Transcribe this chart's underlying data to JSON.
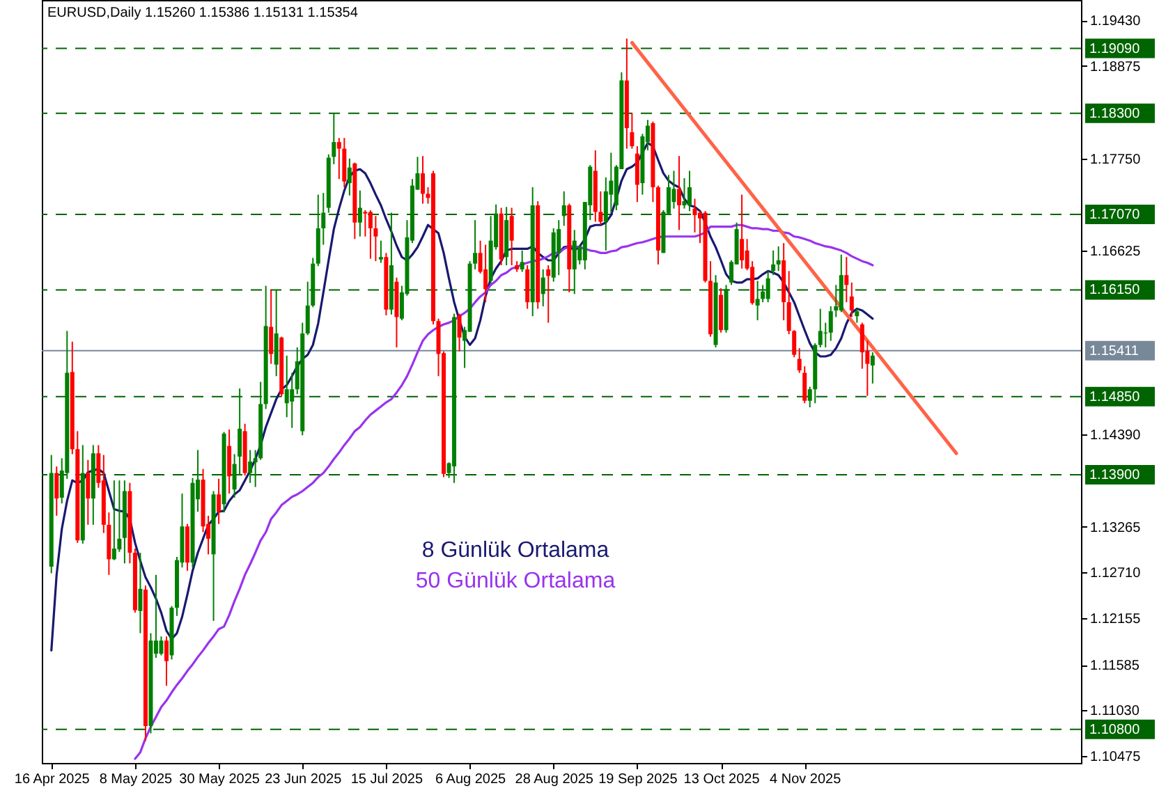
{
  "chart_data": {
    "type": "candlestick",
    "title": "EURUSD,Daily  1.15260 1.15386 1.15131 1.15354",
    "categories": [
      "16 Apr 2025",
      null,
      null,
      null,
      null,
      null,
      null,
      null,
      null,
      null,
      null,
      null,
      null,
      null,
      null,
      null,
      "8 May 2025",
      null,
      null,
      null,
      null,
      null,
      null,
      null,
      null,
      null,
      null,
      null,
      null,
      null,
      null,
      null,
      "30 May 2025",
      null,
      null,
      null,
      null,
      null,
      null,
      null,
      null,
      null,
      null,
      null,
      null,
      null,
      null,
      null,
      "23 Jun 2025",
      null,
      null,
      null,
      null,
      null,
      null,
      null,
      null,
      null,
      null,
      null,
      null,
      null,
      null,
      null,
      "15 Jul 2025",
      null,
      null,
      null,
      null,
      null,
      null,
      null,
      null,
      null,
      null,
      null,
      null,
      null,
      null,
      null,
      "6 Aug 2025",
      null,
      null,
      null,
      null,
      null,
      null,
      null,
      null,
      null,
      null,
      null,
      null,
      null,
      null,
      null,
      "28 Aug 2025",
      null,
      null,
      null,
      null,
      null,
      null,
      null,
      null,
      null,
      null,
      null,
      null,
      null,
      null,
      null,
      "19 Sep 2025",
      null,
      null,
      null,
      null,
      null,
      null,
      null,
      null,
      null,
      null,
      null,
      null,
      null,
      null,
      null,
      "13 Oct 2025",
      null,
      null,
      null,
      null,
      null,
      null,
      null,
      null,
      null,
      null,
      null,
      null,
      null,
      null,
      null,
      "4 Nov 2025",
      null,
      null,
      null,
      null,
      null,
      null,
      null,
      null,
      null,
      null,
      null,
      null,
      null,
      null,
      null,
      null,
      null,
      null,
      null,
      null,
      null,
      null,
      null,
      null,
      null,
      null,
      null,
      null,
      null,
      null,
      null,
      null,
      null,
      null,
      null,
      null,
      null,
      null,
      null,
      null,
      null,
      null,
      null,
      null,
      null,
      null,
      null,
      null,
      null,
      null,
      null
    ],
    "colors": [
      "#008000",
      "#ff0000",
      "#008000",
      "#008000",
      "#ff0000",
      "#ff0000",
      "#008000",
      "#ff0000",
      "#008000",
      "#ff0000",
      "#ff0000",
      "#ff0000",
      "#008000",
      "#008000",
      "#008000",
      "#ff0000",
      "#ff0000",
      "#008000",
      "#ff0000",
      "#008000",
      "#008000",
      "#008000",
      "#ff0000",
      "#008000",
      "#008000",
      "#008000",
      "#ff0000",
      "#008000",
      "#008000",
      "#ff0000",
      "#ff0000",
      "#008000",
      "#ff0000",
      "#008000",
      "#ff0000",
      "#008000",
      "#008000",
      "#ff0000",
      "#008000",
      "#008000",
      "#008000",
      "#008000",
      "#ff0000",
      "#008000",
      "#ff0000",
      "#008000",
      "#008000",
      "#008000",
      "#008000",
      "#008000",
      "#008000",
      "#008000",
      "#008000",
      "#008000",
      "#008000",
      "#ff0000",
      "#ff0000",
      "#008000",
      "#ff0000",
      "#008000",
      "#ff0000",
      "#ff0000",
      "#ff0000",
      "#008000",
      "#ff0000",
      "#008000",
      "#ff0000",
      "#008000",
      "#008000",
      "#008000",
      "#008000",
      "#ff0000",
      "#ff0000",
      "#ff0000",
      "#ff0000",
      "#ff0000",
      "#008000",
      "#008000",
      "#ff0000",
      "#008000",
      "#008000",
      "#008000",
      "#ff0000",
      "#ff0000",
      "#008000",
      "#008000",
      "#ff0000",
      "#008000",
      "#ff0000",
      "#ff0000",
      "#008000",
      "#ff0000",
      "#008000",
      "#ff0000",
      "#008000",
      "#ff0000",
      "#008000",
      "#008000",
      "#008000",
      "#ff0000",
      "#008000",
      "#008000",
      "#008000",
      "#008000",
      "#ff0000",
      "#ff0000",
      "#008000",
      "#008000",
      "#008000",
      "#008000",
      "#ff0000",
      "#ff0000",
      "#ff0000",
      "#008000",
      "#008000",
      "#ff0000",
      "#ff0000",
      "#008000",
      "#008000",
      "#008000",
      "#ff0000",
      "#008000",
      "#008000",
      "#ff0000",
      "#ff0000",
      "#ff0000",
      "#ff0000",
      "#008000",
      "#ff0000",
      "#008000",
      "#008000",
      "#008000",
      "#ff0000",
      "#ff0000",
      "#ff0000",
      "#008000",
      "#008000",
      "#008000",
      "#008000",
      "#008000",
      "#ff0000",
      "#ff0000",
      "#ff0000",
      "#ff0000",
      "#ff0000",
      "#008000",
      "#008000",
      "#008000",
      "#008000",
      "#008000",
      "#008000",
      "#008000",
      "#ff0000",
      "#ff0000",
      "#008000",
      "#ff0000",
      "#ff0000",
      "#008000",
      null,
      null,
      null,
      null,
      null,
      null,
      null,
      null,
      null,
      null,
      null,
      null,
      null,
      null,
      null,
      null,
      null,
      null,
      null,
      null,
      null,
      null,
      null,
      null,
      null,
      null,
      null,
      null,
      null,
      null,
      null,
      null,
      null,
      null,
      null,
      null,
      null,
      null
    ],
    "ohlc": [
      [
        1.1278,
        1.1414,
        1.127,
        1.1392
      ],
      [
        1.1392,
        1.14,
        1.134,
        1.1361
      ],
      [
        1.1362,
        1.141,
        1.1355,
        1.1395
      ],
      [
        1.1392,
        1.1565,
        1.1385,
        1.1514
      ],
      [
        1.1515,
        1.1552,
        1.1415,
        1.1421
      ],
      [
        1.1421,
        1.1443,
        1.1307,
        1.131
      ],
      [
        1.131,
        1.1426,
        1.1306,
        1.1392
      ],
      [
        1.1392,
        1.1408,
        1.1329,
        1.1361
      ],
      [
        1.1361,
        1.1426,
        1.1329,
        1.1416
      ],
      [
        1.1416,
        1.1426,
        1.1374,
        1.138
      ],
      [
        1.1383,
        1.1414,
        1.1319,
        1.1329
      ],
      [
        1.1329,
        1.1344,
        1.1268,
        1.1287
      ],
      [
        1.1287,
        1.1383,
        1.1286,
        1.13
      ],
      [
        1.1299,
        1.1383,
        1.1296,
        1.1312
      ],
      [
        1.1313,
        1.1383,
        1.1282,
        1.137
      ],
      [
        1.137,
        1.138,
        1.1282,
        1.1295
      ],
      [
        1.1295,
        1.13,
        1.1222,
        1.1225
      ],
      [
        1.1224,
        1.1295,
        1.1197,
        1.1251
      ],
      [
        1.125,
        1.1255,
        1.1066,
        1.1084
      ],
      [
        1.1084,
        1.1197,
        1.1075,
        1.1188
      ],
      [
        1.1172,
        1.1268,
        1.1167,
        1.1188
      ],
      [
        1.1172,
        1.1193,
        1.117,
        1.1188
      ],
      [
        1.1188,
        1.1193,
        1.1133,
        1.1163
      ],
      [
        1.117,
        1.123,
        1.1165,
        1.1228
      ],
      [
        1.1228,
        1.129,
        1.1218,
        1.1286
      ],
      [
        1.1283,
        1.1367,
        1.1277,
        1.1327
      ],
      [
        1.1327,
        1.133,
        1.1273,
        1.1283
      ],
      [
        1.1283,
        1.1386,
        1.1277,
        1.138
      ],
      [
        1.136,
        1.142,
        1.1345,
        1.1384
      ],
      [
        1.1384,
        1.1397,
        1.132,
        1.1327
      ],
      [
        1.133,
        1.134,
        1.1293,
        1.1312
      ],
      [
        1.1293,
        1.137,
        1.1212,
        1.1366
      ],
      [
        1.1366,
        1.1385,
        1.133,
        1.1345
      ],
      [
        1.1354,
        1.1442,
        1.1344,
        1.144
      ],
      [
        1.1425,
        1.1445,
        1.1367,
        1.1388
      ],
      [
        1.1372,
        1.1415,
        1.1362,
        1.1403
      ],
      [
        1.1412,
        1.1495,
        1.139,
        1.1446
      ],
      [
        1.1443,
        1.1452,
        1.1389,
        1.1392
      ],
      [
        1.1392,
        1.142,
        1.138,
        1.1406
      ],
      [
        1.1405,
        1.142,
        1.1375,
        1.141
      ],
      [
        1.141,
        1.1503,
        1.1408,
        1.1476
      ],
      [
        1.1476,
        1.162,
        1.147,
        1.1571
      ],
      [
        1.157,
        1.1615,
        1.1525,
        1.1537
      ],
      [
        1.1524,
        1.1615,
        1.151,
        1.1562
      ],
      [
        1.1557,
        1.1558,
        1.1485,
        1.1488
      ],
      [
        1.1477,
        1.1535,
        1.146,
        1.1494
      ],
      [
        1.1479,
        1.1514,
        1.1447,
        1.1494
      ],
      [
        1.1494,
        1.1545,
        1.1488,
        1.1528
      ],
      [
        1.1443,
        1.1575,
        1.1438,
        1.1562
      ],
      [
        1.1562,
        1.1625,
        1.156,
        1.1596
      ],
      [
        1.1596,
        1.1654,
        1.1594,
        1.1647
      ],
      [
        1.1647,
        1.1731,
        1.1644,
        1.169
      ],
      [
        1.169,
        1.1733,
        1.167,
        1.1709
      ],
      [
        1.1715,
        1.178,
        1.1709,
        1.1776
      ],
      [
        1.1777,
        1.183,
        1.1768,
        1.1795
      ],
      [
        1.1795,
        1.18,
        1.175,
        1.1787
      ],
      [
        1.1787,
        1.18,
        1.174,
        1.1747
      ],
      [
        1.1745,
        1.1775,
        1.173,
        1.1764
      ],
      [
        1.1769,
        1.177,
        1.1677,
        1.1697
      ],
      [
        1.1697,
        1.1736,
        1.168,
        1.1715
      ],
      [
        1.171,
        1.1712,
        1.168,
        1.1708
      ],
      [
        1.171,
        1.1712,
        1.1653,
        1.169
      ],
      [
        1.169,
        1.1705,
        1.165,
        1.168
      ],
      [
        1.1652,
        1.1675,
        1.1648,
        1.1655
      ],
      [
        1.1655,
        1.166,
        1.1584,
        1.1591
      ],
      [
        1.1591,
        1.1709,
        1.1585,
        1.1645
      ],
      [
        1.1625,
        1.163,
        1.1545,
        1.1582
      ],
      [
        1.158,
        1.162,
        1.1578,
        1.1612
      ],
      [
        1.161,
        1.17,
        1.1608,
        1.1679
      ],
      [
        1.1675,
        1.175,
        1.1672,
        1.1742
      ],
      [
        1.1737,
        1.1777,
        1.1737,
        1.1757
      ],
      [
        1.1757,
        1.1778,
        1.172,
        1.1732
      ],
      [
        1.1732,
        1.174,
        1.172,
        1.1727
      ],
      [
        1.1757,
        1.176,
        1.1573,
        1.1577
      ],
      [
        1.1577,
        1.158,
        1.151,
        1.1537
      ],
      [
        1.1538,
        1.154,
        1.1387,
        1.1391
      ],
      [
        1.1392,
        1.1405,
        1.1386,
        1.1404
      ],
      [
        1.14,
        1.1586,
        1.138,
        1.1582
      ],
      [
        1.1584,
        1.1586,
        1.154,
        1.1557
      ],
      [
        1.1553,
        1.157,
        1.152,
        1.1566
      ],
      [
        1.1564,
        1.165,
        1.1564,
        1.1647
      ],
      [
        1.1647,
        1.17,
        1.164,
        1.166
      ],
      [
        1.166,
        1.1675,
        1.1635,
        1.1637
      ],
      [
        1.164,
        1.167,
        1.16,
        1.1616
      ],
      [
        1.1626,
        1.1705,
        1.1623,
        1.1675
      ],
      [
        1.1667,
        1.1719,
        1.1664,
        1.1708
      ],
      [
        1.1708,
        1.1715,
        1.1645,
        1.1652
      ],
      [
        1.1655,
        1.1716,
        1.1645,
        1.17
      ],
      [
        1.1705,
        1.1715,
        1.1645,
        1.1675
      ],
      [
        1.1645,
        1.165,
        1.1637,
        1.164
      ],
      [
        1.164,
        1.1663,
        1.1637,
        1.1649
      ],
      [
        1.164,
        1.1645,
        1.1592,
        1.16
      ],
      [
        1.16,
        1.174,
        1.1583,
        1.1718
      ],
      [
        1.1718,
        1.1723,
        1.1592,
        1.16
      ],
      [
        1.161,
        1.164,
        1.1595,
        1.163
      ],
      [
        1.164,
        1.1645,
        1.1575,
        1.1632
      ],
      [
        1.163,
        1.169,
        1.1625,
        1.1685
      ],
      [
        1.166,
        1.17,
        1.1633,
        1.1689
      ],
      [
        1.1705,
        1.1735,
        1.1693,
        1.1718
      ],
      [
        1.1718,
        1.172,
        1.1612,
        1.164
      ],
      [
        1.164,
        1.1688,
        1.161,
        1.1675
      ],
      [
        1.1651,
        1.1668,
        1.1646,
        1.1668
      ],
      [
        1.1651,
        1.1722,
        1.164,
        1.1722
      ],
      [
        1.1718,
        1.1767,
        1.17,
        1.1765
      ],
      [
        1.176,
        1.1785,
        1.1698,
        1.171
      ],
      [
        1.171,
        1.1735,
        1.1694,
        1.1698
      ],
      [
        1.1698,
        1.1752,
        1.1663,
        1.1735
      ],
      [
        1.1731,
        1.1782,
        1.1709,
        1.1748
      ],
      [
        1.1718,
        1.1767,
        1.1712,
        1.1765
      ],
      [
        1.1762,
        1.188,
        1.1762,
        1.187
      ],
      [
        1.187,
        1.1921,
        1.1787,
        1.1812
      ],
      [
        1.1807,
        1.183,
        1.1787,
        1.179
      ],
      [
        1.1781,
        1.179,
        1.1722,
        1.1743
      ],
      [
        1.1745,
        1.1805,
        1.1731,
        1.1802
      ],
      [
        1.1795,
        1.1822,
        1.1785,
        1.1815
      ],
      [
        1.1818,
        1.182,
        1.1722,
        1.174
      ],
      [
        1.174,
        1.1742,
        1.1646,
        1.1663
      ],
      [
        1.166,
        1.1712,
        1.166,
        1.171
      ],
      [
        1.1708,
        1.1755,
        1.1706,
        1.174
      ],
      [
        1.1722,
        1.176,
        1.1714,
        1.1738
      ],
      [
        1.1738,
        1.1778,
        1.1688,
        1.1718
      ],
      [
        1.1718,
        1.1751,
        1.1714,
        1.1723
      ],
      [
        1.1718,
        1.176,
        1.1711,
        1.174
      ],
      [
        1.1714,
        1.1726,
        1.1685,
        1.1706
      ],
      [
        1.1709,
        1.1711,
        1.1672,
        1.1702
      ],
      [
        1.1709,
        1.1711,
        1.1624,
        1.1626
      ],
      [
        1.1626,
        1.165,
        1.1558,
        1.1561
      ],
      [
        1.1548,
        1.1633,
        1.1545,
        1.1624
      ],
      [
        1.1609,
        1.1617,
        1.1563,
        1.1566
      ],
      [
        1.1566,
        1.1621,
        1.1563,
        1.1616
      ],
      [
        1.1624,
        1.1651,
        1.1621,
        1.1649
      ],
      [
        1.1646,
        1.1697,
        1.1646,
        1.1689
      ],
      [
        1.1677,
        1.1731,
        1.1641,
        1.1651
      ],
      [
        1.1663,
        1.1677,
        1.1639,
        1.1641
      ],
      [
        1.1643,
        1.165,
        1.1597,
        1.1599
      ],
      [
        1.1596,
        1.1626,
        1.1578,
        1.1604
      ],
      [
        1.1604,
        1.1621,
        1.16,
        1.1613
      ],
      [
        1.1604,
        1.1638,
        1.16,
        1.1629
      ],
      [
        1.1638,
        1.1663,
        1.1633,
        1.1646
      ],
      [
        1.1646,
        1.1668,
        1.1638,
        1.1651
      ],
      [
        1.1651,
        1.1672,
        1.1578,
        1.16
      ],
      [
        1.16,
        1.1638,
        1.1561,
        1.1565
      ],
      [
        1.1565,
        1.1566,
        1.1533,
        1.1536
      ],
      [
        1.1531,
        1.1544,
        1.1514,
        1.1517
      ],
      [
        1.1514,
        1.1522,
        1.1477,
        1.148
      ],
      [
        1.148,
        1.1497,
        1.1472,
        1.1494
      ],
      [
        1.1494,
        1.155,
        1.1477,
        1.1548
      ],
      [
        1.1548,
        1.1592,
        1.1545,
        1.1565
      ],
      [
        1.1562,
        1.1575,
        1.1545,
        1.1563
      ],
      [
        1.1563,
        1.1595,
        1.1553,
        1.1589
      ],
      [
        1.159,
        1.1621,
        1.1582,
        1.1595
      ],
      [
        1.159,
        1.1658,
        1.1588,
        1.1633
      ],
      [
        1.1633,
        1.1655,
        1.16,
        1.1621
      ],
      [
        1.1607,
        1.1624,
        1.1582,
        1.159
      ],
      [
        1.1583,
        1.1592,
        1.1575,
        1.1589
      ],
      [
        1.1573,
        1.1575,
        1.1519,
        1.1539
      ],
      [
        1.1541,
        1.1553,
        1.1486,
        1.1525
      ],
      [
        1.1523,
        1.1539,
        1.1501,
        1.1535
      ],
      null,
      null,
      null,
      null,
      null,
      null,
      null,
      null,
      null,
      null,
      null,
      null,
      null,
      null,
      null,
      null,
      null,
      null,
      null,
      null,
      null,
      null,
      null,
      null,
      null,
      null,
      null,
      null,
      null,
      null,
      null,
      null,
      null,
      null,
      null,
      null,
      null,
      null
    ],
    "series": [
      {
        "name": "8 Günlük Ortalama",
        "type": "line",
        "color": "#191970",
        "values": [
          1.1176,
          1.1268,
          1.1324,
          1.1358,
          1.1383,
          1.138,
          1.1383,
          1.1393,
          1.1395,
          1.1397,
          1.1392,
          1.137,
          1.1348,
          1.1346,
          1.1345,
          1.1336,
          1.1307,
          1.1285,
          1.1265,
          1.1253,
          1.1239,
          1.1222,
          1.12,
          1.119,
          1.1197,
          1.1217,
          1.1244,
          1.1273,
          1.1295,
          1.1312,
          1.1329,
          1.1336,
          1.1345,
          1.1346,
          1.1358,
          1.1366,
          1.1371,
          1.1383,
          1.1395,
          1.1409,
          1.1426,
          1.1448,
          1.1465,
          1.1482,
          1.1494,
          1.1499,
          1.151,
          1.1522,
          1.1531,
          1.1536,
          1.1548,
          1.1574,
          1.1612,
          1.1651,
          1.1689,
          1.1714,
          1.1736,
          1.1753,
          1.176,
          1.1762,
          1.1757,
          1.1745,
          1.1731,
          1.1718,
          1.1701,
          1.1686,
          1.1669,
          1.1655,
          1.1651,
          1.1658,
          1.1667,
          1.168,
          1.1694,
          1.1689,
          1.1684,
          1.166,
          1.1629,
          1.16,
          1.1578,
          1.1558,
          1.1548,
          1.1556,
          1.1578,
          1.1607,
          1.1629,
          1.1641,
          1.165,
          1.1663,
          1.1665,
          1.1665,
          1.1665,
          1.1665,
          1.1668,
          1.166,
          1.1655,
          1.1651,
          1.1651,
          1.166,
          1.1667,
          1.1668,
          1.1663,
          1.1668,
          1.1677,
          1.1692,
          1.1694,
          1.1694,
          1.1697,
          1.1706,
          1.1726,
          1.1748,
          1.1762,
          1.1765,
          1.177,
          1.1782,
          1.1794,
          1.179,
          1.1773,
          1.1757,
          1.1748,
          1.1743,
          1.174,
          1.1726,
          1.1718,
          1.1716,
          1.1711,
          1.1697,
          1.168,
          1.1667,
          1.1651,
          1.1634,
          1.1626,
          1.1624,
          1.1624,
          1.1628,
          1.1628,
          1.1629,
          1.1634,
          1.1638,
          1.1636,
          1.1633,
          1.1624,
          1.1612,
          1.16,
          1.1583,
          1.1566,
          1.155,
          1.1539,
          1.1534,
          1.1534,
          1.1536,
          1.1544,
          1.1556,
          1.1574,
          1.1587,
          1.1592,
          1.159,
          1.1585,
          1.158,
          null,
          null,
          null,
          null,
          null,
          null,
          null,
          null,
          null,
          null,
          null,
          null,
          null,
          null,
          null,
          null,
          null,
          null,
          null,
          null,
          null,
          null,
          null,
          null,
          null,
          null,
          null,
          null,
          null,
          null,
          null,
          null,
          null,
          null,
          null,
          null,
          null,
          null
        ]
      },
      {
        "name": "50 Günlük Ortalama",
        "type": "line",
        "color": "#9933ee",
        "values": [
          null,
          null,
          null,
          null,
          null,
          null,
          null,
          null,
          null,
          null,
          null,
          null,
          null,
          null,
          null,
          null,
          1.1044,
          1.1052,
          1.1069,
          1.1083,
          1.1095,
          1.1107,
          1.1115,
          1.1125,
          1.1134,
          1.1142,
          1.1151,
          1.1159,
          1.1168,
          1.1176,
          1.1185,
          1.1193,
          1.1202,
          1.1205,
          1.1219,
          1.1236,
          1.1251,
          1.1268,
          1.1281,
          1.1295,
          1.131,
          1.132,
          1.1336,
          1.1344,
          1.1353,
          1.1358,
          1.1363,
          1.1366,
          1.137,
          1.1375,
          1.138,
          1.1387,
          1.1392,
          1.14,
          1.1409,
          1.1417,
          1.1426,
          1.1434,
          1.1443,
          1.1448,
          1.1456,
          1.1463,
          1.1468,
          1.1473,
          1.1478,
          1.1482,
          1.149,
          1.1499,
          1.151,
          1.1524,
          1.1539,
          1.1553,
          1.1561,
          1.1566,
          1.157,
          1.1573,
          1.1575,
          1.1578,
          1.1583,
          1.1587,
          1.1592,
          1.16,
          1.1607,
          1.1612,
          1.1621,
          1.1626,
          1.1633,
          1.1636,
          1.1641,
          1.1643,
          1.1646,
          1.1648,
          1.165,
          1.1651,
          1.1653,
          1.1656,
          1.166,
          1.166,
          1.1665,
          1.1668,
          1.1668,
          1.1667,
          1.1665,
          1.1663,
          1.1662,
          1.166,
          1.166,
          1.1662,
          1.1663,
          1.1667,
          1.1668,
          1.167,
          1.1672,
          1.1673,
          1.1675,
          1.1677,
          1.1679,
          1.168,
          1.168,
          1.168,
          1.168,
          1.168,
          1.168,
          1.168,
          1.1682,
          1.1685,
          1.1692,
          1.1692,
          1.1692,
          1.1692,
          1.1692,
          1.1694,
          1.1694,
          1.1692,
          1.169,
          1.169,
          1.1689,
          1.1689,
          1.1687,
          1.1687,
          1.1685,
          1.1684,
          1.168,
          1.1679,
          1.1677,
          1.1675,
          1.1672,
          1.167,
          1.1668,
          1.1667,
          1.1665,
          1.1663,
          1.166,
          1.1656,
          1.1653,
          1.165,
          1.1648,
          1.1645,
          null,
          null,
          null,
          null,
          null,
          null,
          null,
          null,
          null,
          null,
          null,
          null,
          null,
          null,
          null,
          null,
          null,
          null,
          null,
          null,
          null,
          null,
          null,
          null,
          null,
          null,
          null,
          null,
          null,
          null,
          null,
          null,
          null,
          null,
          null,
          null,
          null,
          null
        ]
      },
      {
        "type": "line",
        "color": "#ff6347",
        "values": [
          null,
          null,
          null,
          null,
          null,
          null,
          null,
          null,
          null,
          null,
          null,
          null,
          null,
          null,
          null,
          null,
          null,
          null,
          null,
          null,
          null,
          null,
          null,
          null,
          null,
          null,
          null,
          null,
          null,
          null,
          null,
          null,
          null,
          null,
          null,
          null,
          null,
          null,
          null,
          null,
          null,
          null,
          null,
          null,
          null,
          null,
          null,
          null,
          null,
          null,
          null,
          null,
          null,
          null,
          null,
          null,
          null,
          null,
          null,
          null,
          null,
          null,
          null,
          null,
          null,
          null,
          null,
          null,
          null,
          null,
          null,
          null,
          null,
          null,
          null,
          null,
          null,
          null,
          null,
          null,
          null,
          null,
          null,
          null,
          null,
          null,
          null,
          null,
          null,
          null,
          null,
          null,
          null,
          null,
          null,
          null,
          null,
          null,
          null,
          null,
          null,
          null,
          null,
          null,
          null,
          null,
          null,
          null,
          null,
          null,
          null,
          1.1916,
          null,
          null,
          null,
          null,
          null,
          null,
          null,
          null,
          null,
          null,
          null,
          null,
          null,
          null,
          null,
          null,
          null,
          null,
          null,
          null,
          null,
          null,
          null,
          null,
          null,
          null,
          null,
          null,
          null,
          null,
          null,
          null,
          null,
          null,
          null,
          null,
          null,
          null,
          null,
          null,
          null,
          null,
          null,
          null,
          null,
          null,
          null,
          null,
          null,
          null,
          null,
          null,
          null,
          null,
          null,
          null,
          null,
          null,
          null,
          null,
          null,
          1.1416,
          null,
          null,
          null,
          null,
          null,
          null,
          null,
          null,
          null,
          null,
          null,
          null,
          null,
          null,
          null,
          null,
          null,
          null,
          null,
          null,
          null,
          null
        ]
      }
    ],
    "ylim": [
      1.1039,
      1.1968
    ],
    "yticks": [
      {
        "value": 1.1943,
        "label": "1.19430"
      },
      {
        "value": 1.18875,
        "label": "1.18875"
      },
      {
        "value": 1.1775,
        "label": "1.17750"
      },
      {
        "value": 1.16625,
        "label": "1.16625"
      },
      {
        "value": 1.1439,
        "label": "1.14390"
      },
      {
        "value": 1.13265,
        "label": "1.13265"
      },
      {
        "value": 1.1271,
        "label": "1.12710"
      },
      {
        "value": 1.12155,
        "label": "1.12155"
      },
      {
        "value": 1.11585,
        "label": "1.11585"
      },
      {
        "value": 1.1103,
        "label": "1.11030"
      },
      {
        "value": 1.10475,
        "label": "1.10475"
      }
    ],
    "ref_lines": [
      {
        "axis": "y",
        "value": 1.1909,
        "label": "1.19090",
        "color": "#006400",
        "line_style": "dashed"
      },
      {
        "axis": "y",
        "value": 1.183,
        "label": "1.18300",
        "color": "#006400",
        "line_style": "dashed"
      },
      {
        "axis": "y",
        "value": 1.1707,
        "label": "1.17070",
        "color": "#006400",
        "line_style": "dashed"
      },
      {
        "axis": "y",
        "value": 1.1615,
        "label": "1.16150",
        "color": "#006400",
        "line_style": "dashed"
      },
      {
        "axis": "y",
        "value": 1.15411,
        "label": "1.15411",
        "color": "#778899",
        "line_style": "solid"
      },
      {
        "axis": "y",
        "value": 1.1485,
        "label": "1.14850",
        "color": "#006400",
        "line_style": "dashed"
      },
      {
        "axis": "y",
        "value": 1.139,
        "label": "1.13900",
        "color": "#006400",
        "line_style": "dashed"
      },
      {
        "axis": "y",
        "value": 1.108,
        "label": "1.10800",
        "color": "#006400",
        "line_style": "dashed"
      }
    ]
  }
}
